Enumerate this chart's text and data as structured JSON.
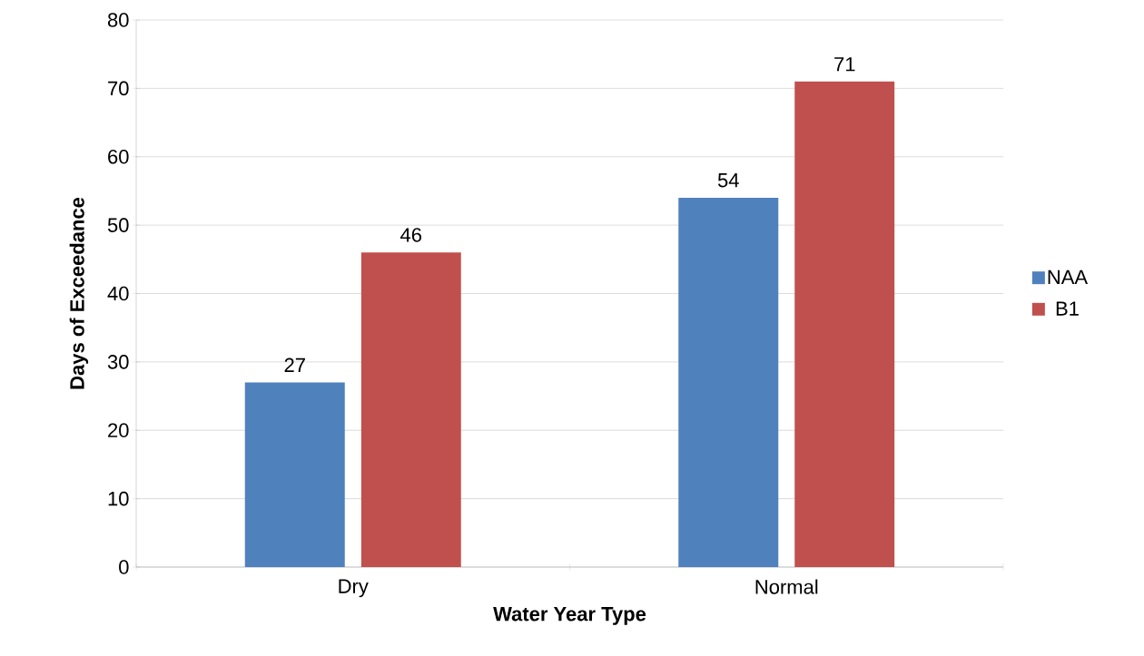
{
  "chart_data": {
    "type": "bar",
    "xlabel": "Water Year Type",
    "ylabel": "Days of Exceedance",
    "categories": [
      "Dry",
      "Normal"
    ],
    "series": [
      {
        "name": "NAA",
        "color": "#4f81bd",
        "values": [
          27,
          54
        ]
      },
      {
        "name": "B1",
        "color": "#c0504d",
        "values": [
          46,
          71
        ]
      }
    ],
    "ylim": [
      0,
      80
    ],
    "yticks": [
      0,
      10,
      20,
      30,
      40,
      50,
      60,
      70,
      80
    ],
    "grid": "y",
    "legend": "right",
    "data_labels": true
  }
}
